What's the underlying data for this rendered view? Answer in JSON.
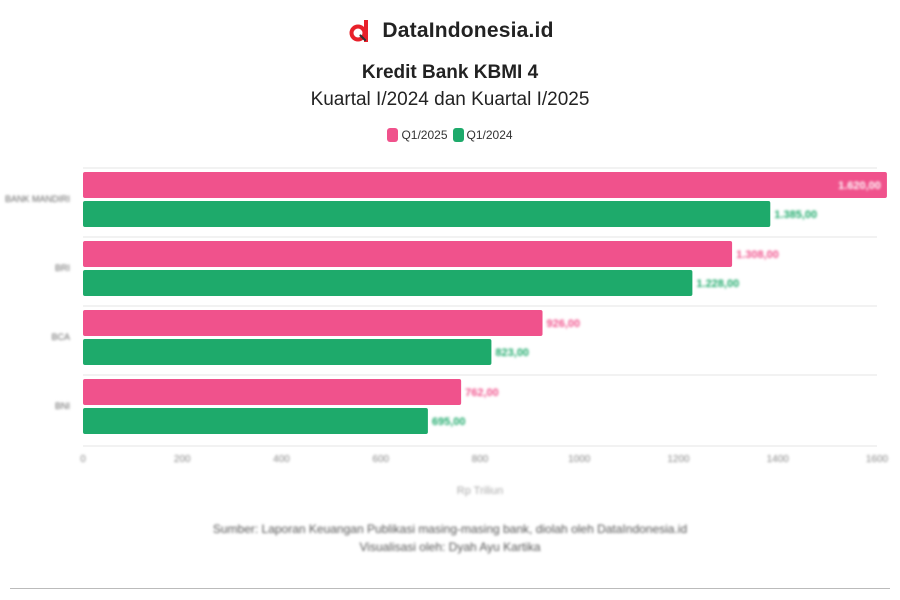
{
  "brand": {
    "name": "DataIndonesia.id",
    "logo_icon": "dataindonesia-logo-icon"
  },
  "colors": {
    "q1_2025": "#f0528c",
    "q1_2024": "#1eaa6b",
    "grid": "#e6e6e6",
    "axis_text": "#888888"
  },
  "chart_data": {
    "type": "bar",
    "orientation": "horizontal",
    "title": "Kredit Bank KBMI 4",
    "subtitle": "Kuartal I/2024 dan Kuartal I/2025",
    "legend_position": "top",
    "categories": [
      "BANK MANDIRI",
      "BRI",
      "BCA",
      "BNI"
    ],
    "series": [
      {
        "name": "Q1/2025",
        "color": "#f0528c",
        "values": [
          1620,
          1308,
          926,
          762
        ]
      },
      {
        "name": "Q1/2024",
        "color": "#1eaa6b",
        "values": [
          1385,
          1228,
          823,
          695
        ]
      }
    ],
    "data_labels": {
      "Q1/2025": [
        "1.620,00",
        "1.308,00",
        "926,00",
        "762,00"
      ],
      "Q1/2024": [
        "1.385,00",
        "1.228,00",
        "823,00",
        "695,00"
      ]
    },
    "xlim": [
      0,
      1600
    ],
    "xticks": [
      0,
      200,
      400,
      600,
      800,
      1000,
      1200,
      1400,
      1600
    ],
    "xtick_labels": [
      "0",
      "200",
      "400",
      "600",
      "800",
      "1000",
      "1200",
      "1400",
      "1600"
    ],
    "xlabel": "Rp Triliun",
    "grid": true
  },
  "source": {
    "line1": "Sumber: Laporan Keuangan Publikasi masing-masing bank, diolah oleh DataIndonesia.id",
    "line2": "Visualisasi oleh: Dyah Ayu Kartika"
  }
}
